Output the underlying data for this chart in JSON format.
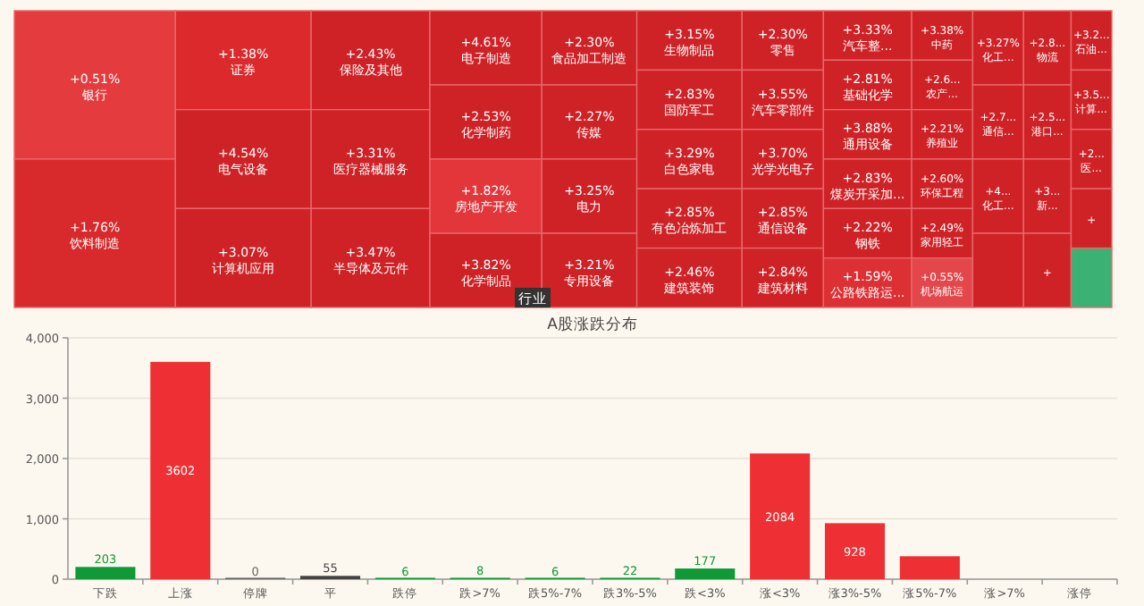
{
  "chart_data": [
    {
      "type": "other",
      "categories": [
        "银行",
        "饮料制造",
        "证券",
        "电气设备",
        "计算机应用",
        "保险及其他",
        "医疗器械服务",
        "半导体及元件",
        "电子制造",
        "化学制药",
        "房地产开发",
        "化学制品",
        "食品加工制造",
        "传媒",
        "电力",
        "专用设备",
        "生物制品",
        "国防军工",
        "白色家电",
        "有色冶炼加工",
        "建筑装饰",
        "零售",
        "汽车零部件",
        "光学光电子",
        "通信设备",
        "建筑材料",
        "汽车整...",
        "基础化学",
        "通用设备",
        "煤炭开采加...",
        "钢铁",
        "公路铁路运...",
        "中药",
        "农产...",
        "养殖业",
        "环保工程",
        "家用轻工",
        "机场航运",
        "化工...",
        "通信...",
        "化工...",
        null,
        "物流",
        "港口...",
        "新...",
        null,
        "石油...",
        "计算...",
        "医...",
        null,
        null
      ],
      "values": [
        0.51,
        1.76,
        1.38,
        4.54,
        3.07,
        2.43,
        3.31,
        3.47,
        4.61,
        2.53,
        1.82,
        3.82,
        2.3,
        2.27,
        3.25,
        3.21,
        3.15,
        2.83,
        3.29,
        2.85,
        2.46,
        2.3,
        3.55,
        3.7,
        2.85,
        2.84,
        3.33,
        2.81,
        3.88,
        2.83,
        2.22,
        1.59,
        3.38,
        null,
        2.21,
        2.6,
        2.49,
        0.55,
        3.27,
        null,
        null,
        null,
        null,
        null,
        null,
        null,
        null,
        null,
        null,
        null,
        null
      ],
      "value_labels": [
        "+0.51%",
        "+1.76%",
        "+1.38%",
        "+4.54%",
        "+3.07%",
        "+2.43%",
        "+3.31%",
        "+3.47%",
        "+4.61%",
        "+2.53%",
        "+1.82%",
        "+3.82%",
        "+2.30%",
        "+2.27%",
        "+3.25%",
        "+3.21%",
        "+3.15%",
        "+2.83%",
        "+3.29%",
        "+2.85%",
        "+2.46%",
        "+2.30%",
        "+3.55%",
        "+3.70%",
        "+2.85%",
        "+2.84%",
        "+3.33%",
        "+2.81%",
        "+3.88%",
        "+2.83%",
        "+2.22%",
        "+1.59%",
        "+3.38%",
        "+2.6...",
        "+2.21%",
        "+2.60%",
        "+2.49%",
        "+0.55%",
        "+3.27%",
        "+2.7...",
        "+4...",
        null,
        "+2.8...",
        "+2.5...",
        "+3...",
        "+",
        "+3.2...",
        "+3.5...",
        "+2...",
        "+",
        null
      ],
      "colors": [
        "#e43c3e",
        "#d82a2c",
        "#dc2a2c",
        "#cf2226",
        "#cf2226",
        "#cf2226",
        "#cf2226",
        "#cf2226",
        "#cf2226",
        "#cf2226",
        "#e3363a",
        "#cf2226",
        "#cf2226",
        "#cf2226",
        "#cf2226",
        "#cf2226",
        "#cf2226",
        "#cf2226",
        "#cf2226",
        "#cf2226",
        "#cf2226",
        "#cf2226",
        "#cf2226",
        "#cf2226",
        "#cf2226",
        "#cf2226",
        "#cf2226",
        "#cf2226",
        "#cf2226",
        "#cf2226",
        "#cf2226",
        "#dc3034",
        "#cf2226",
        "#cf2226",
        "#cf2226",
        "#cf2226",
        "#cf2226",
        "#e4474b",
        "#cf2226",
        "#cf2226",
        "#cf2226",
        "#cf2226",
        "#cf2226",
        "#cf2226",
        "#cf2226",
        "#cf2226",
        "#cf2226",
        "#cf2226",
        "#cf2226",
        "#cf2226",
        "#3bb273"
      ],
      "annotations": [
        "行业"
      ]
    },
    {
      "type": "bar",
      "title": "A股涨跌分布",
      "categories": [
        "下跌",
        "上涨",
        "停牌",
        "平",
        "跌停",
        "跌>7%",
        "跌5%-7%",
        "跌3%-5%",
        "跌<3%",
        "涨<3%",
        "涨3%-5%",
        "涨5%-7%",
        "涨>7%",
        "涨停"
      ],
      "values": [
        203,
        3602,
        0,
        55,
        6,
        8,
        6,
        22,
        177,
        2084,
        928,
        380,
        null,
        null
      ],
      "value_labels": [
        "203",
        "3602",
        "0",
        "55",
        "6",
        "8",
        "6",
        "22",
        "177",
        "2084",
        "928",
        null,
        null,
        null
      ],
      "colors": [
        "#0f9a37",
        "#ee3034",
        "#666666",
        "#444444",
        "#0f9a37",
        "#0f9a37",
        "#0f9a37",
        "#0f9a37",
        "#0f9a37",
        "#ee3034",
        "#ee3034",
        "#ee3034",
        "#ee3034",
        "#ee3034"
      ],
      "ylim": [
        0,
        4000
      ],
      "yticks": [
        0,
        {
          "value": 1000,
          "label": "1,000"
        },
        {
          "value": 2000,
          "label": "2,000"
        },
        {
          "value": 3000,
          "label": "3,000"
        },
        {
          "value": 4000,
          "label": "4,000"
        }
      ],
      "grid": "y",
      "legend": false
    }
  ]
}
